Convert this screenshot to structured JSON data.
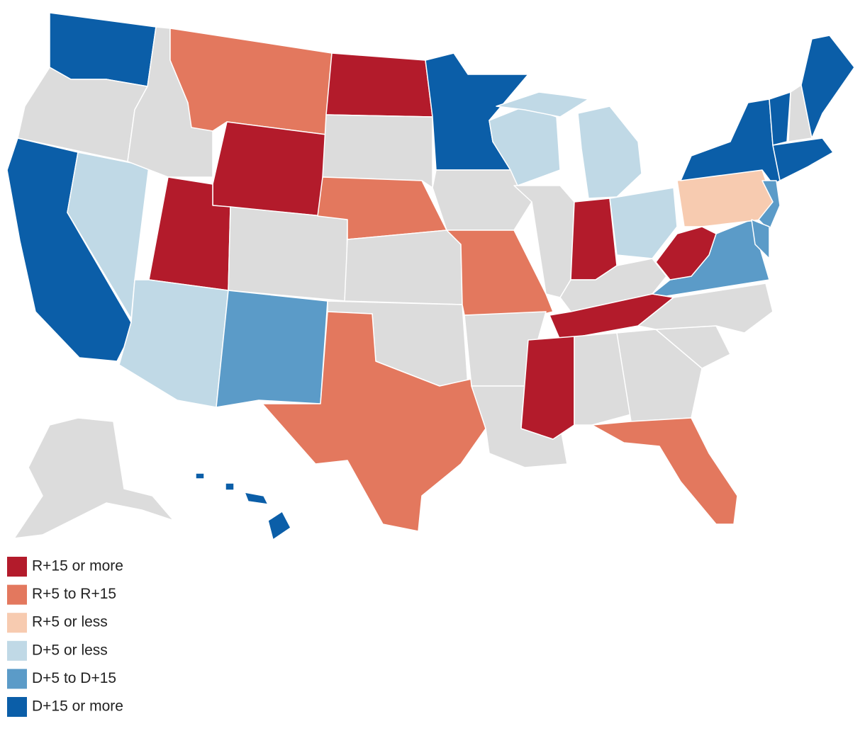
{
  "map": {
    "no_data_color": "#dcdcdc",
    "legend": [
      {
        "label": "R+15 or more",
        "color": "#b31b2b"
      },
      {
        "label": "R+5 to R+15",
        "color": "#e3785e"
      },
      {
        "label": "R+5 or less",
        "color": "#f7cbb0"
      },
      {
        "label": "D+5 or less",
        "color": "#c0d9e6"
      },
      {
        "label": "D+5 to D+15",
        "color": "#5b9bc8"
      },
      {
        "label": "D+15 or more",
        "color": "#0b5ea8"
      }
    ]
  }
}
